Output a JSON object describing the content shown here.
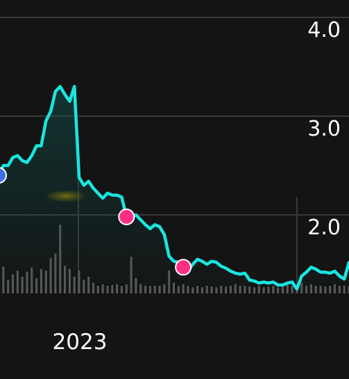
{
  "chart_data": {
    "type": "line",
    "title": "",
    "xlabel": "",
    "ylabel": "",
    "ylim": [
      1.3,
      4.2
    ],
    "y_ticks": [
      "4.0",
      "3.0",
      "2.0"
    ],
    "y_tick_values": [
      4.0,
      3.0,
      2.0
    ],
    "x_tick_label": "2023",
    "grid": true,
    "colors": {
      "background": "#141414",
      "line": "#19e6e0",
      "grid": "#3a3a3a",
      "volume": "#5a5a5a",
      "marker_pink": "#ff2f86",
      "marker_blue": "#3f6fe8",
      "area_fill": "#0f5a55"
    },
    "series": [
      {
        "values": [
          2.4,
          2.5,
          2.5,
          2.58,
          2.6,
          2.55,
          2.53,
          2.6,
          2.7,
          2.7,
          2.95,
          3.05,
          3.25,
          3.3,
          3.22,
          3.15,
          3.3,
          2.38,
          2.3,
          2.34,
          2.27,
          2.22,
          2.17,
          2.22,
          2.2,
          2.2,
          2.18,
          1.98,
          1.97,
          2.0,
          1.95,
          1.9,
          1.86,
          1.9,
          1.88,
          1.8,
          1.58,
          1.53,
          1.52,
          1.47,
          1.43,
          1.5,
          1.55,
          1.53,
          1.5,
          1.53,
          1.52,
          1.48,
          1.46,
          1.43,
          1.41,
          1.4,
          1.41,
          1.34,
          1.33,
          1.31,
          1.32,
          1.31,
          1.32,
          1.29,
          1.29,
          1.31,
          1.32,
          1.25,
          1.38,
          1.42,
          1.47,
          1.45,
          1.42,
          1.42,
          1.41,
          1.43,
          1.38,
          1.35,
          1.52
        ]
      }
    ],
    "volume": [
      0.2,
      0.35,
      0.18,
      0.25,
      0.3,
      0.22,
      0.28,
      0.34,
      0.2,
      0.32,
      0.3,
      0.46,
      0.52,
      0.9,
      0.36,
      0.32,
      0.22,
      0.3,
      0.18,
      0.22,
      0.14,
      0.1,
      0.12,
      0.1,
      0.11,
      0.12,
      0.1,
      0.12,
      0.48,
      0.2,
      0.12,
      0.1,
      0.1,
      0.1,
      0.1,
      0.12,
      0.3,
      0.14,
      0.1,
      0.12,
      0.1,
      0.08,
      0.1,
      0.08,
      0.1,
      0.09,
      0.08,
      0.1,
      0.09,
      0.1,
      0.12,
      0.1,
      0.1,
      0.09,
      0.08,
      0.1,
      0.08,
      0.09,
      0.1,
      0.08,
      0.1,
      0.12,
      0.1,
      0.09,
      0.14,
      0.1,
      0.12,
      0.1,
      0.1,
      0.09,
      0.1,
      0.12,
      0.1,
      0.1,
      0.1
    ],
    "markers": [
      {
        "index": 0,
        "kind": "blue"
      },
      {
        "index": 27,
        "kind": "pink"
      },
      {
        "index": 39,
        "kind": "pink"
      }
    ]
  }
}
